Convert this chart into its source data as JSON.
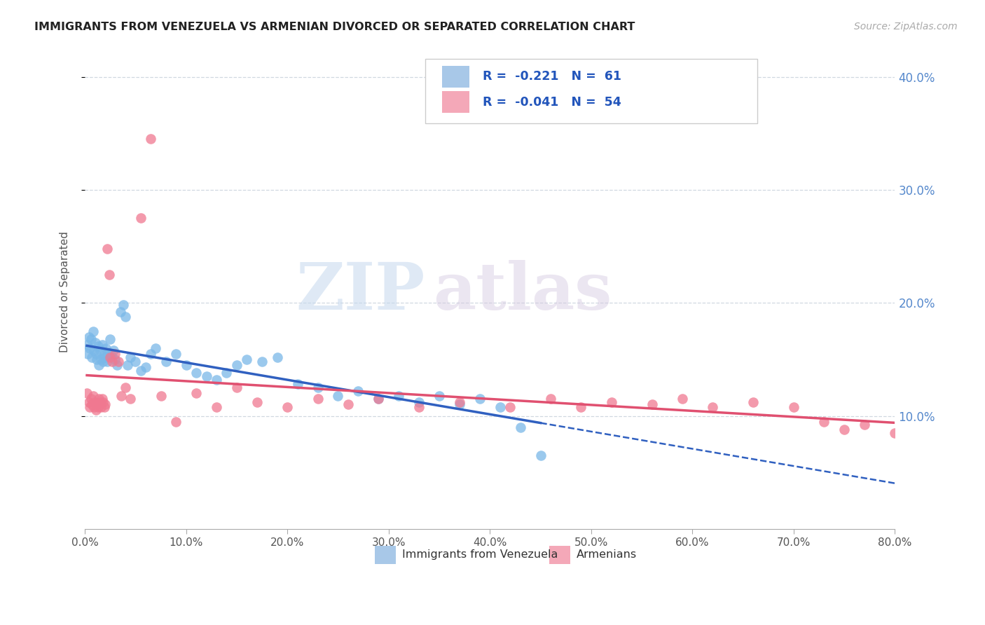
{
  "title": "IMMIGRANTS FROM VENEZUELA VS ARMENIAN DIVORCED OR SEPARATED CORRELATION CHART",
  "source": "Source: ZipAtlas.com",
  "ylabel": "Divorced or Separated",
  "legend1_label": "R =  -0.221   N =  61",
  "legend2_label": "R =  -0.041   N =  54",
  "legend1_color": "#a8c8e8",
  "legend2_color": "#f4a8b8",
  "scatter1_color": "#7ab8e8",
  "scatter2_color": "#f07890",
  "trendline1_color": "#3060c0",
  "trendline2_color": "#e05070",
  "watermark_zip": "ZIP",
  "watermark_atlas": "atlas",
  "background_color": "#ffffff",
  "grid_color": "#d0d8e0",
  "axis_color": "#aaaaaa",
  "label1": "Immigrants from Venezuela",
  "label2": "Armenians",
  "xlim": [
    0.0,
    0.8
  ],
  "ylim": [
    0.0,
    0.42
  ],
  "ytick_vals": [
    0.1,
    0.2,
    0.3,
    0.4
  ],
  "xtick_vals": [
    0.0,
    0.1,
    0.2,
    0.3,
    0.4,
    0.5,
    0.6,
    0.7,
    0.8
  ],
  "scatter1_x": [
    0.002,
    0.003,
    0.004,
    0.005,
    0.006,
    0.007,
    0.008,
    0.009,
    0.01,
    0.011,
    0.012,
    0.013,
    0.014,
    0.015,
    0.016,
    0.017,
    0.018,
    0.019,
    0.02,
    0.021,
    0.022,
    0.023,
    0.025,
    0.026,
    0.028,
    0.03,
    0.032,
    0.035,
    0.038,
    0.04,
    0.042,
    0.045,
    0.05,
    0.055,
    0.06,
    0.065,
    0.07,
    0.08,
    0.09,
    0.1,
    0.11,
    0.12,
    0.13,
    0.14,
    0.15,
    0.16,
    0.175,
    0.19,
    0.21,
    0.23,
    0.25,
    0.27,
    0.29,
    0.31,
    0.33,
    0.35,
    0.37,
    0.39,
    0.41,
    0.43,
    0.45
  ],
  "scatter1_y": [
    0.163,
    0.155,
    0.17,
    0.16,
    0.168,
    0.152,
    0.175,
    0.158,
    0.165,
    0.155,
    0.15,
    0.162,
    0.145,
    0.158,
    0.15,
    0.163,
    0.148,
    0.155,
    0.152,
    0.16,
    0.148,
    0.155,
    0.168,
    0.153,
    0.158,
    0.15,
    0.145,
    0.192,
    0.198,
    0.188,
    0.145,
    0.152,
    0.148,
    0.14,
    0.143,
    0.155,
    0.16,
    0.148,
    0.155,
    0.145,
    0.138,
    0.135,
    0.132,
    0.138,
    0.145,
    0.15,
    0.148,
    0.152,
    0.128,
    0.125,
    0.118,
    0.122,
    0.115,
    0.118,
    0.112,
    0.118,
    0.11,
    0.115,
    0.108,
    0.09,
    0.065
  ],
  "scatter2_x": [
    0.002,
    0.004,
    0.005,
    0.006,
    0.007,
    0.008,
    0.009,
    0.01,
    0.011,
    0.012,
    0.013,
    0.014,
    0.015,
    0.016,
    0.017,
    0.018,
    0.019,
    0.02,
    0.022,
    0.024,
    0.025,
    0.027,
    0.03,
    0.033,
    0.036,
    0.04,
    0.045,
    0.055,
    0.065,
    0.075,
    0.09,
    0.11,
    0.13,
    0.15,
    0.17,
    0.2,
    0.23,
    0.26,
    0.29,
    0.33,
    0.37,
    0.42,
    0.46,
    0.49,
    0.52,
    0.56,
    0.59,
    0.62,
    0.66,
    0.7,
    0.73,
    0.75,
    0.77,
    0.8
  ],
  "scatter2_y": [
    0.12,
    0.112,
    0.108,
    0.115,
    0.11,
    0.118,
    0.108,
    0.112,
    0.105,
    0.11,
    0.108,
    0.115,
    0.112,
    0.108,
    0.115,
    0.112,
    0.108,
    0.11,
    0.248,
    0.225,
    0.152,
    0.148,
    0.155,
    0.148,
    0.118,
    0.125,
    0.115,
    0.275,
    0.345,
    0.118,
    0.095,
    0.12,
    0.108,
    0.125,
    0.112,
    0.108,
    0.115,
    0.11,
    0.115,
    0.108,
    0.112,
    0.108,
    0.115,
    0.108,
    0.112,
    0.11,
    0.115,
    0.108,
    0.112,
    0.108,
    0.095,
    0.088,
    0.092,
    0.085
  ]
}
